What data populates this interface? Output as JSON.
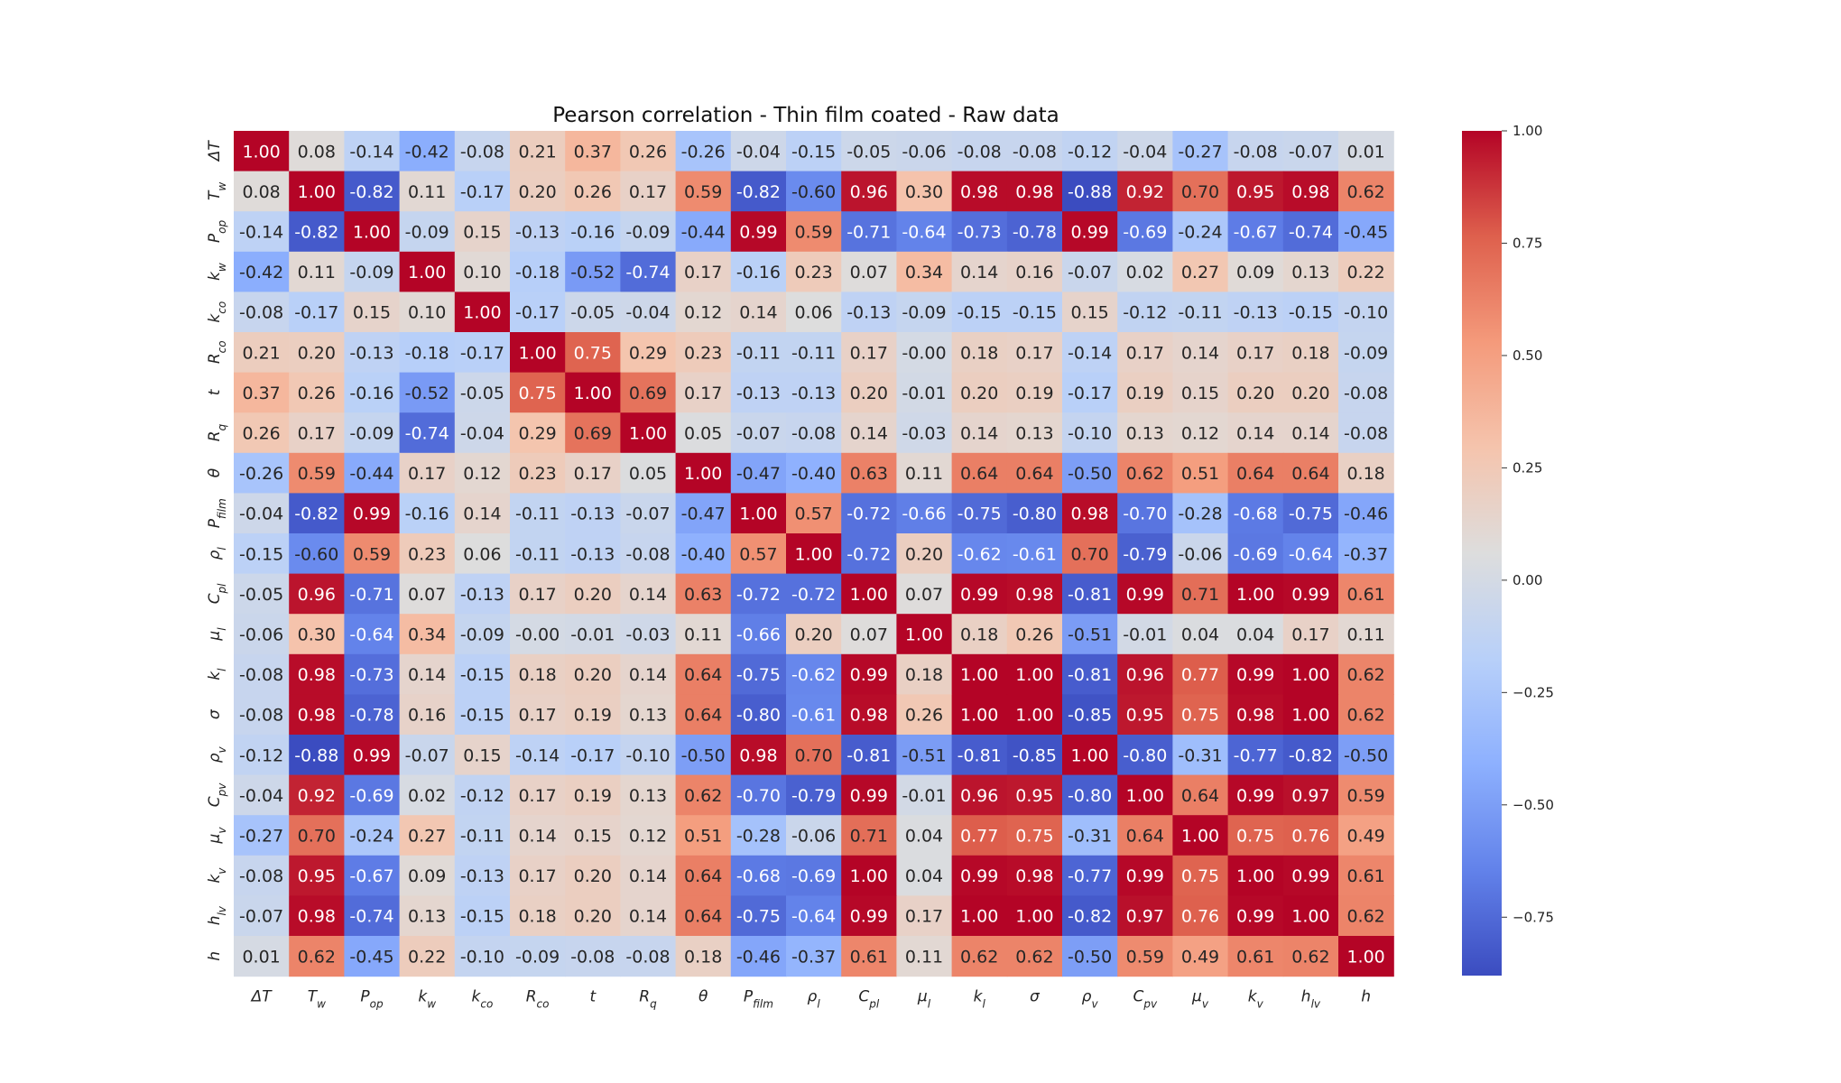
{
  "chart_data": {
    "type": "heatmap",
    "title": "Pearson correlation - Thin film coated - Raw data",
    "colormap": "coolwarm",
    "vmin": -0.88,
    "vmax": 1.0,
    "labels": [
      "ΔT",
      "Tw",
      "Pop",
      "kw",
      "kco",
      "Rco",
      "t",
      "Rq",
      "θ",
      "Pfilm",
      "ρl",
      "Cpl",
      "μl",
      "kl",
      "σ",
      "ρv",
      "Cpv",
      "μv",
      "kv",
      "hlv",
      "h"
    ],
    "label_parts": [
      [
        "ΔT",
        ""
      ],
      [
        "T",
        "w"
      ],
      [
        "P",
        "op"
      ],
      [
        "k",
        "w"
      ],
      [
        "k",
        "co"
      ],
      [
        "R",
        "co"
      ],
      [
        "t",
        ""
      ],
      [
        "R",
        "q"
      ],
      [
        "θ",
        ""
      ],
      [
        "P",
        "film"
      ],
      [
        "ρ",
        "l"
      ],
      [
        "C",
        "pl"
      ],
      [
        "μ",
        "l"
      ],
      [
        "k",
        "l"
      ],
      [
        "σ",
        ""
      ],
      [
        "ρ",
        "v"
      ],
      [
        "C",
        "pv"
      ],
      [
        "μ",
        "v"
      ],
      [
        "k",
        "v"
      ],
      [
        "h",
        "lv"
      ],
      [
        "h",
        ""
      ]
    ],
    "matrix_display": [
      [
        "1.00",
        "0.08",
        "-0.14",
        "-0.42",
        "-0.08",
        "0.21",
        "0.37",
        "0.26",
        "-0.26",
        "-0.04",
        "-0.15",
        "-0.05",
        "-0.06",
        "-0.08",
        "-0.08",
        "-0.12",
        "-0.04",
        "-0.27",
        "-0.08",
        "-0.07",
        "0.01"
      ],
      [
        "0.08",
        "1.00",
        "-0.82",
        "0.11",
        "-0.17",
        "0.20",
        "0.26",
        "0.17",
        "0.59",
        "-0.82",
        "-0.60",
        "0.96",
        "0.30",
        "0.98",
        "0.98",
        "-0.88",
        "0.92",
        "0.70",
        "0.95",
        "0.98",
        "0.62"
      ],
      [
        "-0.14",
        "-0.82",
        "1.00",
        "-0.09",
        "0.15",
        "-0.13",
        "-0.16",
        "-0.09",
        "-0.44",
        "0.99",
        "0.59",
        "-0.71",
        "-0.64",
        "-0.73",
        "-0.78",
        "0.99",
        "-0.69",
        "-0.24",
        "-0.67",
        "-0.74",
        "-0.45"
      ],
      [
        "-0.42",
        "0.11",
        "-0.09",
        "1.00",
        "0.10",
        "-0.18",
        "-0.52",
        "-0.74",
        "0.17",
        "-0.16",
        "0.23",
        "0.07",
        "0.34",
        "0.14",
        "0.16",
        "-0.07",
        "0.02",
        "0.27",
        "0.09",
        "0.13",
        "0.22"
      ],
      [
        "-0.08",
        "-0.17",
        "0.15",
        "0.10",
        "1.00",
        "-0.17",
        "-0.05",
        "-0.04",
        "0.12",
        "0.14",
        "0.06",
        "-0.13",
        "-0.09",
        "-0.15",
        "-0.15",
        "0.15",
        "-0.12",
        "-0.11",
        "-0.13",
        "-0.15",
        "-0.10"
      ],
      [
        "0.21",
        "0.20",
        "-0.13",
        "-0.18",
        "-0.17",
        "1.00",
        "0.75",
        "0.29",
        "0.23",
        "-0.11",
        "-0.11",
        "0.17",
        "-0.00",
        "0.18",
        "0.17",
        "-0.14",
        "0.17",
        "0.14",
        "0.17",
        "0.18",
        "-0.09"
      ],
      [
        "0.37",
        "0.26",
        "-0.16",
        "-0.52",
        "-0.05",
        "0.75",
        "1.00",
        "0.69",
        "0.17",
        "-0.13",
        "-0.13",
        "0.20",
        "-0.01",
        "0.20",
        "0.19",
        "-0.17",
        "0.19",
        "0.15",
        "0.20",
        "0.20",
        "-0.08"
      ],
      [
        "0.26",
        "0.17",
        "-0.09",
        "-0.74",
        "-0.04",
        "0.29",
        "0.69",
        "1.00",
        "0.05",
        "-0.07",
        "-0.08",
        "0.14",
        "-0.03",
        "0.14",
        "0.13",
        "-0.10",
        "0.13",
        "0.12",
        "0.14",
        "0.14",
        "-0.08"
      ],
      [
        "-0.26",
        "0.59",
        "-0.44",
        "0.17",
        "0.12",
        "0.23",
        "0.17",
        "0.05",
        "1.00",
        "-0.47",
        "-0.40",
        "0.63",
        "0.11",
        "0.64",
        "0.64",
        "-0.50",
        "0.62",
        "0.51",
        "0.64",
        "0.64",
        "0.18"
      ],
      [
        "-0.04",
        "-0.82",
        "0.99",
        "-0.16",
        "0.14",
        "-0.11",
        "-0.13",
        "-0.07",
        "-0.47",
        "1.00",
        "0.57",
        "-0.72",
        "-0.66",
        "-0.75",
        "-0.80",
        "0.98",
        "-0.70",
        "-0.28",
        "-0.68",
        "-0.75",
        "-0.46"
      ],
      [
        "-0.15",
        "-0.60",
        "0.59",
        "0.23",
        "0.06",
        "-0.11",
        "-0.13",
        "-0.08",
        "-0.40",
        "0.57",
        "1.00",
        "-0.72",
        "0.20",
        "-0.62",
        "-0.61",
        "0.70",
        "-0.79",
        "-0.06",
        "-0.69",
        "-0.64",
        "-0.37"
      ],
      [
        "-0.05",
        "0.96",
        "-0.71",
        "0.07",
        "-0.13",
        "0.17",
        "0.20",
        "0.14",
        "0.63",
        "-0.72",
        "-0.72",
        "1.00",
        "0.07",
        "0.99",
        "0.98",
        "-0.81",
        "0.99",
        "0.71",
        "1.00",
        "0.99",
        "0.61"
      ],
      [
        "-0.06",
        "0.30",
        "-0.64",
        "0.34",
        "-0.09",
        "-0.00",
        "-0.01",
        "-0.03",
        "0.11",
        "-0.66",
        "0.20",
        "0.07",
        "1.00",
        "0.18",
        "0.26",
        "-0.51",
        "-0.01",
        "0.04",
        "0.04",
        "0.17",
        "0.11"
      ],
      [
        "-0.08",
        "0.98",
        "-0.73",
        "0.14",
        "-0.15",
        "0.18",
        "0.20",
        "0.14",
        "0.64",
        "-0.75",
        "-0.62",
        "0.99",
        "0.18",
        "1.00",
        "1.00",
        "-0.81",
        "0.96",
        "0.77",
        "0.99",
        "1.00",
        "0.62"
      ],
      [
        "-0.08",
        "0.98",
        "-0.78",
        "0.16",
        "-0.15",
        "0.17",
        "0.19",
        "0.13",
        "0.64",
        "-0.80",
        "-0.61",
        "0.98",
        "0.26",
        "1.00",
        "1.00",
        "-0.85",
        "0.95",
        "0.75",
        "0.98",
        "1.00",
        "0.62"
      ],
      [
        "-0.12",
        "-0.88",
        "0.99",
        "-0.07",
        "0.15",
        "-0.14",
        "-0.17",
        "-0.10",
        "-0.50",
        "0.98",
        "0.70",
        "-0.81",
        "-0.51",
        "-0.81",
        "-0.85",
        "1.00",
        "-0.80",
        "-0.31",
        "-0.77",
        "-0.82",
        "-0.50"
      ],
      [
        "-0.04",
        "0.92",
        "-0.69",
        "0.02",
        "-0.12",
        "0.17",
        "0.19",
        "0.13",
        "0.62",
        "-0.70",
        "-0.79",
        "0.99",
        "-0.01",
        "0.96",
        "0.95",
        "-0.80",
        "1.00",
        "0.64",
        "0.99",
        "0.97",
        "0.59"
      ],
      [
        "-0.27",
        "0.70",
        "-0.24",
        "0.27",
        "-0.11",
        "0.14",
        "0.15",
        "0.12",
        "0.51",
        "-0.28",
        "-0.06",
        "0.71",
        "0.04",
        "0.77",
        "0.75",
        "-0.31",
        "0.64",
        "1.00",
        "0.75",
        "0.76",
        "0.49"
      ],
      [
        "-0.08",
        "0.95",
        "-0.67",
        "0.09",
        "-0.13",
        "0.17",
        "0.20",
        "0.14",
        "0.64",
        "-0.68",
        "-0.69",
        "1.00",
        "0.04",
        "0.99",
        "0.98",
        "-0.77",
        "0.99",
        "0.75",
        "1.00",
        "0.99",
        "0.61"
      ],
      [
        "-0.07",
        "0.98",
        "-0.74",
        "0.13",
        "-0.15",
        "0.18",
        "0.20",
        "0.14",
        "0.64",
        "-0.75",
        "-0.64",
        "0.99",
        "0.17",
        "1.00",
        "1.00",
        "-0.82",
        "0.97",
        "0.76",
        "0.99",
        "1.00",
        "0.62"
      ],
      [
        "0.01",
        "0.62",
        "-0.45",
        "0.22",
        "-0.10",
        "-0.09",
        "-0.08",
        "-0.08",
        "0.18",
        "-0.46",
        "-0.37",
        "0.61",
        "0.11",
        "0.62",
        "0.62",
        "-0.50",
        "0.59",
        "0.49",
        "0.61",
        "0.62",
        "1.00"
      ]
    ],
    "colorbar": {
      "ticks": [
        1.0,
        0.75,
        0.5,
        0.25,
        0.0,
        -0.25,
        -0.5,
        -0.75
      ],
      "tick_labels": [
        "1.00",
        "0.75",
        "0.50",
        "0.25",
        "0.00",
        "−0.25",
        "−0.50",
        "−0.75"
      ]
    }
  }
}
